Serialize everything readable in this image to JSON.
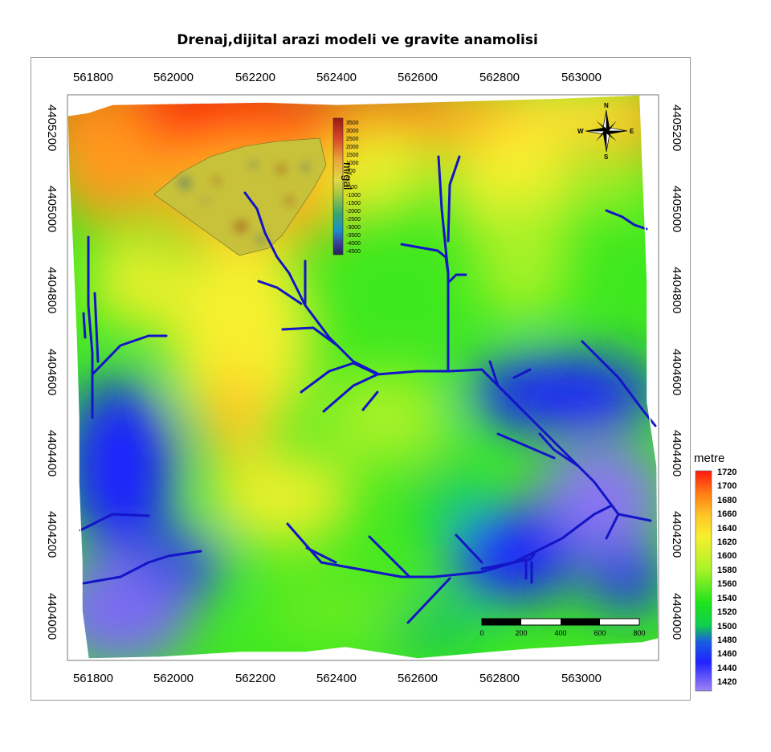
{
  "title": "Drenaj,dijital arazi modeli ve gravite anamolisi",
  "axes": {
    "x_ticks": [
      "561800",
      "562000",
      "562200",
      "562400",
      "562600",
      "562800",
      "563000"
    ],
    "y_ticks": [
      "4405200",
      "4405000",
      "4404800",
      "4404600",
      "4404400",
      "4404200",
      "4404000"
    ]
  },
  "elevation_legend": {
    "title": "metre",
    "labels": [
      "1720",
      "1700",
      "1680",
      "1660",
      "1640",
      "1620",
      "1600",
      "1580",
      "1560",
      "1540",
      "1520",
      "1500",
      "1480",
      "1460",
      "1440",
      "1420"
    ],
    "colors": [
      "#ff1a0d",
      "#ff4a0d",
      "#ff7a14",
      "#ffa020",
      "#ffc427",
      "#ffe030",
      "#f6f02e",
      "#d7f52a",
      "#a8f228",
      "#64ec22",
      "#1fe31d",
      "#0fd04a",
      "#1a5ae6",
      "#1f23ff",
      "#4a45ff",
      "#a083f4"
    ]
  },
  "gravity_legend": {
    "unit": "m/gal",
    "labels": [
      "3500",
      "3000",
      "2500",
      "2000",
      "1500",
      "1000",
      "500",
      "0",
      "-500",
      "-1000",
      "-1500",
      "-2000",
      "-2500",
      "-3000",
      "-3500",
      "-4000",
      "-4500"
    ]
  },
  "compass": {
    "n": "N",
    "s": "S",
    "e": "E",
    "w": "W"
  },
  "scale_bar": {
    "labels": [
      "0",
      "200",
      "400",
      "600",
      "800"
    ]
  },
  "colors": {
    "drainage": "#1414c8",
    "frame": "#9a9a9a"
  }
}
